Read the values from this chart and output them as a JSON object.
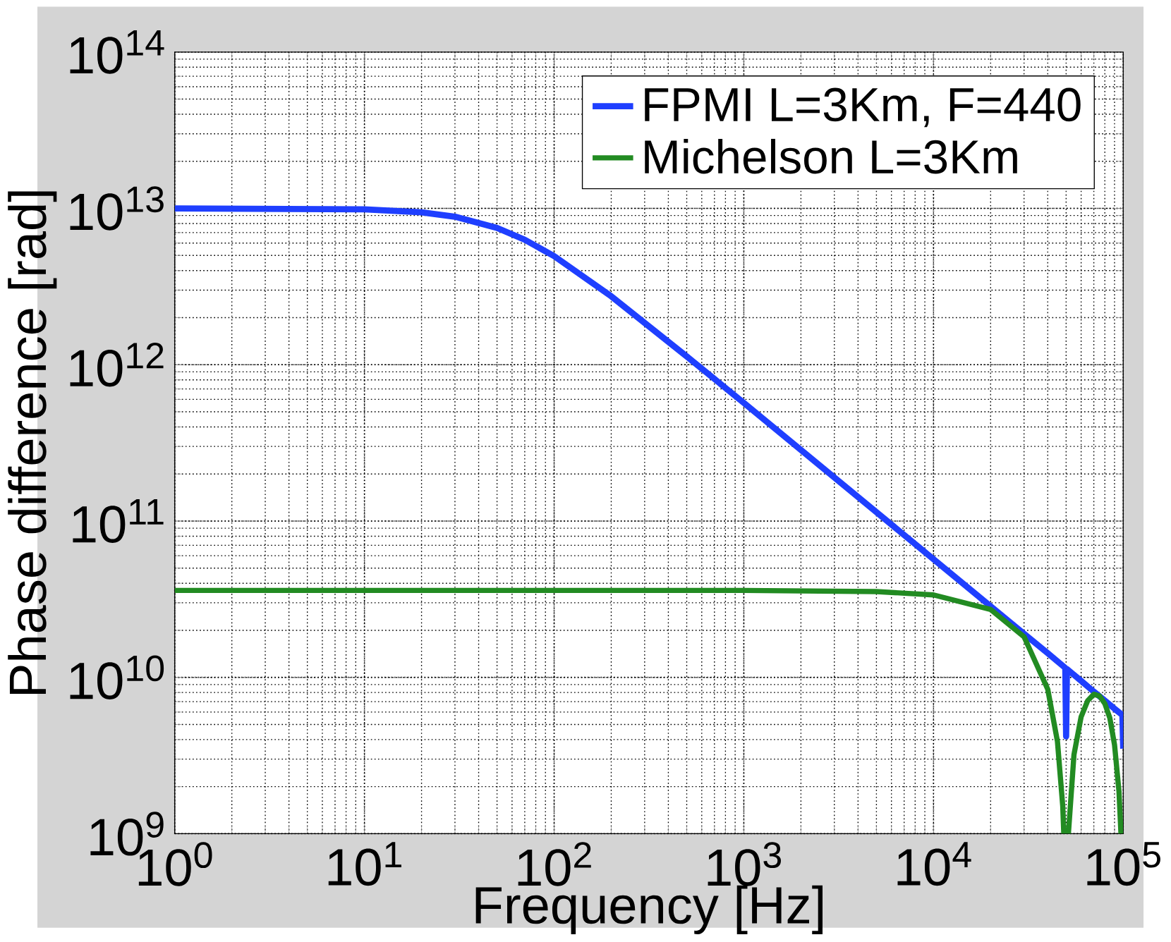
{
  "chart_data": {
    "type": "line",
    "xlabel": "Frequency [Hz]",
    "ylabel": "Phase difference [rad]",
    "log": "xy",
    "grid": true,
    "legend": "top right",
    "marker": "none",
    "line_style": "solid",
    "xlim": [
      1,
      100000
    ],
    "ylim": [
      1000000000,
      100000000000000
    ],
    "xticks": [
      {
        "value": 1,
        "label": "10$^{0}$"
      },
      {
        "value": 10,
        "label": "10$^{1}$"
      },
      {
        "value": 100,
        "label": "10$^{2}$"
      },
      {
        "value": 1000,
        "label": "10$^{3}$"
      },
      {
        "value": 10000,
        "label": "10$^{4}$"
      },
      {
        "value": 100000,
        "label": "10$^{5}$"
      }
    ],
    "yticks": [
      {
        "value": 1000000000,
        "label": "10$^{9}$"
      },
      {
        "value": 10000000000,
        "label": "10$^{10}$"
      },
      {
        "value": 100000000000,
        "label": "10$^{11}$"
      },
      {
        "value": 1000000000000,
        "label": "10$^{12}$"
      },
      {
        "value": 10000000000000,
        "label": "10$^{13}$"
      },
      {
        "value": 100000000000000,
        "label": "10$^{14}$"
      }
    ],
    "series": [
      {
        "name": "FPMI L=3Km, F=440",
        "color": "#1f3fff",
        "x": [
          1,
          10,
          20,
          30,
          50,
          70,
          100,
          200,
          500,
          1000,
          2000,
          5000,
          10000,
          20000,
          30000,
          40000,
          49500,
          50000,
          50500,
          60000,
          70000,
          80000,
          90000,
          99000,
          100000
        ],
        "values": [
          10000000000000.0,
          9850000000000.0,
          9440000000000.0,
          8850000000000.0,
          7500000000000.0,
          6300000000000.0,
          4950000000000.0,
          2740000000000.0,
          1130000000000.0,
          570000000000.0,
          285000000000.0,
          114000000000.0,
          57000000000.0,
          28500000000.0,
          19000000000.0,
          14300000000.0,
          11500000000.0,
          4200000000.0,
          11300000000.0,
          9500000000.0,
          8100000000.0,
          7100000000.0,
          6300000000.0,
          5750000000.0,
          3500000000.0
        ]
      },
      {
        "name": "Michelson L=3Km",
        "color": "#228b22",
        "x": [
          1,
          100,
          1000,
          5000,
          10000,
          20000,
          30000,
          40000,
          45000,
          48000,
          48600,
          50000,
          51400,
          55000,
          60000,
          65000,
          70000,
          75000,
          80000,
          85000,
          90000,
          95000,
          97300
        ],
        "values": [
          36000000000.0,
          36000000000.0,
          36000000000.0,
          35400000000.0,
          33700000000.0,
          27200000000.0,
          18200000000.0,
          8400000000.0,
          3900000000.0,
          1500000000.0,
          1000000000.0,
          null,
          1000000000.0,
          3200000000.0,
          5600000000.0,
          7100000000.0,
          7800000000.0,
          7600000000.0,
          6800000000.0,
          5500000000.0,
          3700000000.0,
          1860000000.0,
          1000000000.0
        ]
      }
    ]
  }
}
